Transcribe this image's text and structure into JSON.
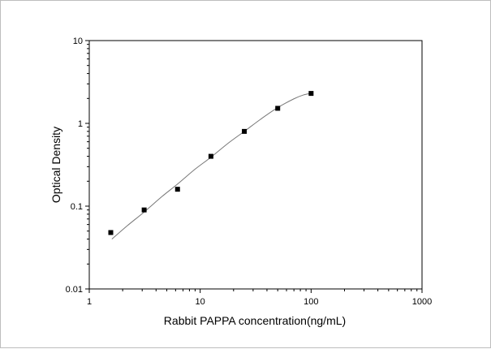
{
  "chart_data": {
    "type": "scatter",
    "title": "",
    "xlabel": "Rabbit PAPPA concentration(ng/mL)",
    "ylabel": "Optical Density",
    "x_scale": "log",
    "y_scale": "log",
    "xlim": [
      1,
      1000
    ],
    "ylim": [
      0.01,
      10
    ],
    "x_ticks": [
      "1",
      "10",
      "100",
      "1000"
    ],
    "y_ticks": [
      "0.01",
      "0.1",
      "1",
      "10"
    ],
    "grid": false,
    "legend": "none",
    "colors": {
      "points": "#000000",
      "curve": "#777777",
      "axes": "#000000"
    },
    "points": {
      "x": [
        1.5625,
        3.125,
        6.25,
        12.5,
        25,
        50,
        100
      ],
      "y": [
        0.048,
        0.09,
        0.16,
        0.4,
        0.8,
        1.52,
        2.3
      ]
    },
    "fit_curve": {
      "x": [
        1.6,
        2.2,
        3.125,
        4.5,
        6.25,
        9,
        12.5,
        18,
        25,
        35,
        50,
        70,
        85,
        100
      ],
      "y": [
        0.04,
        0.058,
        0.085,
        0.13,
        0.185,
        0.28,
        0.39,
        0.58,
        0.8,
        1.12,
        1.55,
        1.98,
        2.2,
        2.3
      ]
    }
  }
}
